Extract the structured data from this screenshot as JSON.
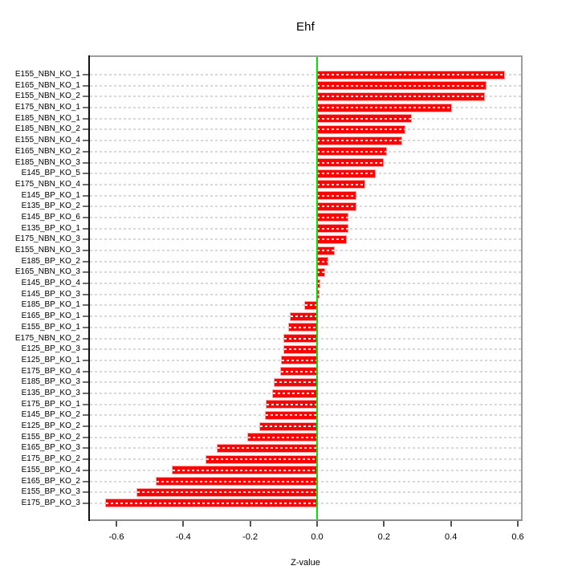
{
  "chart_data": {
    "type": "bar",
    "orientation": "horizontal",
    "title": "Ehf",
    "xlabel": "Z-value",
    "ylabel": "",
    "xlim": [
      -0.68,
      0.61
    ],
    "xticks": [
      -0.6,
      -0.4,
      -0.2,
      0.0,
      0.2,
      0.4,
      0.6
    ],
    "xtick_labels": [
      "-0.6",
      "-0.4",
      "-0.2",
      "0.0",
      "0.2",
      "0.4",
      "0.6"
    ],
    "grid": "dashed-horizontal-per-bar",
    "legend": "none",
    "zero_reference_line": 0.0,
    "categories": [
      "E155_NBN_KO_1",
      "E165_NBN_KO_1",
      "E155_NBN_KO_2",
      "E175_NBN_KO_1",
      "E185_NBN_KO_1",
      "E185_NBN_KO_2",
      "E155_NBN_KO_4",
      "E165_NBN_KO_2",
      "E185_NBN_KO_3",
      "E145_BP_KO_5",
      "E175_NBN_KO_4",
      "E145_BP_KO_1",
      "E135_BP_KO_2",
      "E145_BP_KO_6",
      "E135_BP_KO_1",
      "E175_NBN_KO_3",
      "E155_NBN_KO_3",
      "E185_BP_KO_2",
      "E165_NBN_KO_3",
      "E145_BP_KO_4",
      "E145_BP_KO_3",
      "E185_BP_KO_1",
      "E165_BP_KO_1",
      "E155_BP_KO_1",
      "E175_NBN_KO_2",
      "E125_BP_KO_3",
      "E125_BP_KO_1",
      "E175_BP_KO_4",
      "E185_BP_KO_3",
      "E135_BP_KO_3",
      "E175_BP_KO_1",
      "E145_BP_KO_2",
      "E125_BP_KO_2",
      "E155_BP_KO_2",
      "E165_BP_KO_3",
      "E175_BP_KO_2",
      "E155_BP_KO_4",
      "E165_BP_KO_2",
      "E155_BP_KO_3",
      "E175_BP_KO_3"
    ],
    "values": [
      0.56,
      0.505,
      0.5,
      0.4,
      0.28,
      0.262,
      0.253,
      0.206,
      0.196,
      0.173,
      0.142,
      0.116,
      0.114,
      0.09,
      0.09,
      0.086,
      0.05,
      0.03,
      0.022,
      0.008,
      0.005,
      -0.036,
      -0.079,
      -0.084,
      -0.098,
      -0.098,
      -0.106,
      -0.107,
      -0.128,
      -0.132,
      -0.15,
      -0.154,
      -0.17,
      -0.206,
      -0.298,
      -0.33,
      -0.432,
      -0.48,
      -0.538,
      -0.632
    ],
    "colors": {
      "bar": "#ff0000",
      "bar_halo": "#ffaaaa",
      "zero_line": "#00e300",
      "gridline": "#d9d9d9",
      "axis_box": "#9e9e9e",
      "text": "#000000",
      "background": "#ffffff"
    }
  }
}
